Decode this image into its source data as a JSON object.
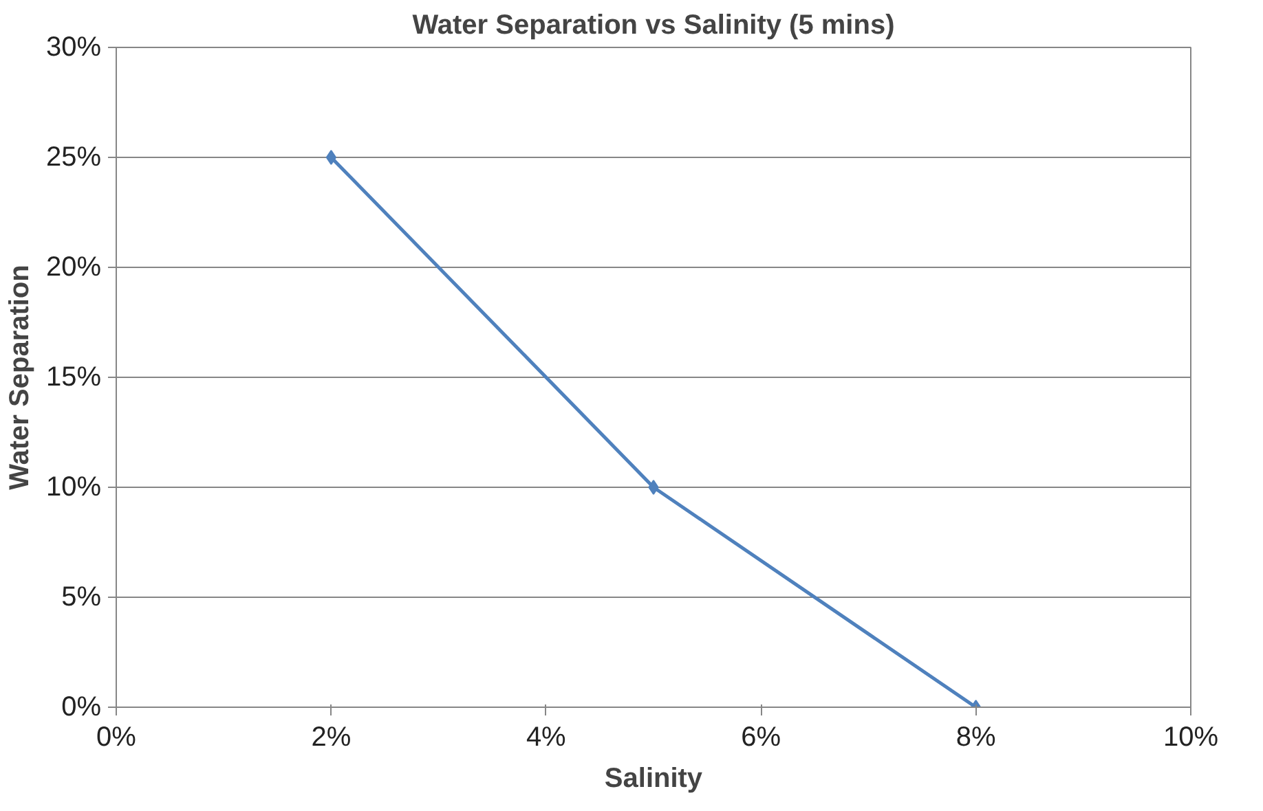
{
  "chart_data": {
    "type": "line",
    "title": "Water Separation vs Salinity (5 mins)",
    "xlabel": "Salinity",
    "ylabel": "Water Separation",
    "x": [
      2,
      5,
      8
    ],
    "series": [
      {
        "color": "#4f81bd",
        "values": [
          25,
          10,
          0
        ]
      }
    ],
    "xlim": [
      0,
      10
    ],
    "xticks": [
      {
        "value": 0,
        "label": "0%"
      },
      {
        "value": 2,
        "label": "2%"
      },
      {
        "value": 4,
        "label": "4%"
      },
      {
        "value": 6,
        "label": "6%"
      },
      {
        "value": 8,
        "label": "8%"
      },
      {
        "value": 10,
        "label": "10%"
      }
    ],
    "ylim": [
      0,
      30
    ],
    "yticks": [
      {
        "value": 0,
        "label": "0%"
      },
      {
        "value": 5,
        "label": "5%"
      },
      {
        "value": 10,
        "label": "10%"
      },
      {
        "value": 15,
        "label": "15%"
      },
      {
        "value": 20,
        "label": "20%"
      },
      {
        "value": 25,
        "label": "25%"
      },
      {
        "value": 30,
        "label": "30%"
      }
    ],
    "grid": "y",
    "marker": "diamond",
    "line_style": "solid"
  }
}
